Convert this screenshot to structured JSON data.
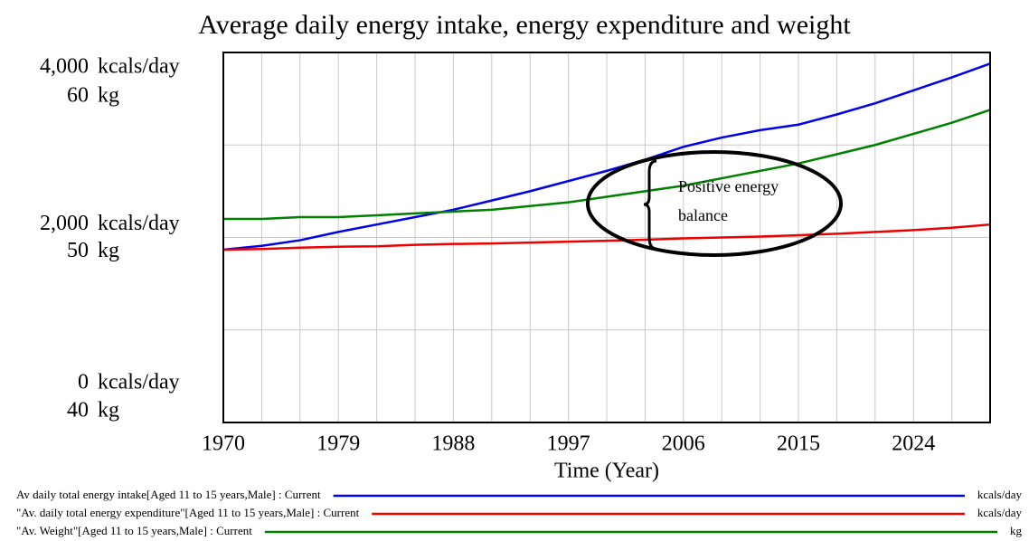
{
  "chart_data": {
    "type": "line",
    "title": "Average daily energy intake, energy expenditure and weight",
    "x_label": "Time (Year)",
    "x": [
      1970,
      1973,
      1976,
      1979,
      1982,
      1985,
      1988,
      1991,
      1994,
      1997,
      2000,
      2003,
      2006,
      2009,
      2012,
      2015,
      2018,
      2021,
      2024,
      2027,
      2030
    ],
    "xlim": [
      1970,
      2030
    ],
    "xticks": [
      1970,
      1979,
      1988,
      1997,
      2006,
      2015,
      2024
    ],
    "xgrid": [
      1970,
      1973,
      1976,
      1979,
      1982,
      1985,
      1988,
      1991,
      1994,
      1997,
      2000,
      2003,
      2006,
      2009,
      2012,
      2015,
      2018,
      2021,
      2024,
      2027,
      2030
    ],
    "ylim": [
      0,
      4000
    ],
    "yticks": [
      {
        "value": 0,
        "label": "0"
      },
      {
        "value": 2000,
        "label": "2,000"
      },
      {
        "value": 4000,
        "label": "4,000"
      }
    ],
    "ygrid": [
      0,
      1000,
      2000,
      3000,
      4000
    ],
    "y_unit": "kcals/day",
    "y2lim": [
      40,
      60
    ],
    "y2ticks": [
      40,
      50,
      60
    ],
    "y2_unit": "kg",
    "grid": true,
    "series": [
      {
        "name": "Av daily total energy intake[Aged 11 to 15 years,Male] : Current",
        "unit": "kcals/day",
        "color": "#0000ee",
        "values": [
          1868,
          1910,
          1970,
          2060,
          2140,
          2220,
          2300,
          2400,
          2500,
          2610,
          2720,
          2840,
          2980,
          3080,
          3160,
          3220,
          3330,
          3450,
          3590,
          3730,
          3880
        ]
      },
      {
        "name": "\"Av. daily total energy expenditure\"[Aged 11 to 15 years,Male] : Current",
        "unit": "kcals/day",
        "color": "#ee0000",
        "values": [
          1868,
          1875,
          1890,
          1900,
          1905,
          1920,
          1930,
          1935,
          1945,
          1955,
          1965,
          1975,
          1990,
          2000,
          2010,
          2025,
          2040,
          2060,
          2080,
          2105,
          2140
        ]
      },
      {
        "name": "\"Av. Weight\"[Aged 11 to 15 years,Male] : Current",
        "unit": "kg",
        "color": "#008000",
        "axis": "y2",
        "values": [
          51.0,
          51.0,
          51.1,
          51.1,
          51.2,
          51.3,
          51.4,
          51.5,
          51.7,
          51.9,
          52.2,
          52.5,
          52.8,
          53.2,
          53.6,
          54.0,
          54.5,
          55.0,
          55.6,
          56.2,
          56.9
        ]
      }
    ],
    "annotation": [
      "Positive energy",
      "balance"
    ]
  }
}
